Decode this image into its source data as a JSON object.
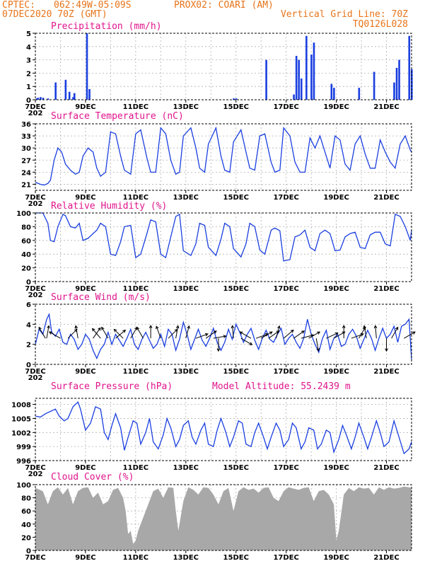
{
  "header": {
    "source": "CPTEC:",
    "coords": "062:49W-05:09S",
    "station": "PROX02: COARI (AM)",
    "datetime": "07DEC2020 70Z (GMT)",
    "grid_note": "Vertical Grid Line: 70Z",
    "run_id": "TQ0126L028"
  },
  "colors": {
    "header": "#e8741a",
    "title": "#e0148c",
    "series": "#1a3fe0",
    "cloud": "#a8a8a8",
    "arrow": "#000000"
  },
  "x_axis": {
    "start": "07DEC",
    "end": "22DEC",
    "tick_labels": [
      "7DEC",
      "9DEC",
      "11DEC",
      "13DEC",
      "15DEC",
      "17DEC",
      "19DEC",
      "21DEC"
    ],
    "partial_year_label": "202"
  },
  "chart_data": [
    {
      "id": "precip",
      "type": "bar",
      "title": "Precipitation (mm/h)",
      "ylim": [
        0,
        5
      ],
      "yticks": [
        "0",
        "1",
        "2",
        "3",
        "4",
        "5"
      ],
      "x": [
        7.05,
        7.1,
        7.2,
        7.3,
        7.5,
        7.8,
        8.2,
        8.35,
        8.5,
        8.55,
        9.05,
        9.15,
        14.9,
        15.0,
        16.2,
        17.3,
        17.4,
        17.5,
        17.6,
        17.8,
        18.0,
        18.1,
        18.8,
        18.9,
        19.9,
        20.5,
        21.3,
        21.4,
        21.5,
        21.9,
        22.0
      ],
      "values": [
        0.1,
        0.15,
        0.2,
        0.15,
        0.1,
        1.3,
        1.5,
        0.6,
        0.2,
        0.5,
        5.0,
        0.8,
        0.1,
        0.1,
        3.0,
        0.4,
        3.3,
        3.0,
        1.6,
        4.8,
        3.4,
        4.3,
        1.2,
        0.9,
        0.9,
        2.1,
        1.3,
        2.4,
        3.0,
        4.8,
        2.3
      ]
    },
    {
      "id": "temp",
      "type": "line",
      "title": "Surface Temperature (nC)",
      "ylim": [
        19.5,
        36
      ],
      "yticks": [
        "21",
        "24",
        "27",
        "30",
        "33",
        "36"
      ],
      "x": [
        7.0,
        7.2,
        7.35,
        7.5,
        7.6,
        7.75,
        7.9,
        8.05,
        8.2,
        8.4,
        8.6,
        8.75,
        8.9,
        9.1,
        9.3,
        9.45,
        9.6,
        9.8,
        10.0,
        10.2,
        10.4,
        10.55,
        10.8,
        11.0,
        11.2,
        11.45,
        11.6,
        11.8,
        12.0,
        12.2,
        12.4,
        12.6,
        12.75,
        12.9,
        13.2,
        13.4,
        13.55,
        13.75,
        13.9,
        14.2,
        14.4,
        14.55,
        14.75,
        14.9,
        15.2,
        15.4,
        15.55,
        15.75,
        15.95,
        16.15,
        16.4,
        16.55,
        16.75,
        16.9,
        17.15,
        17.35,
        17.55,
        17.75,
        17.95,
        18.15,
        18.35,
        18.55,
        18.75,
        18.95,
        19.15,
        19.35,
        19.55,
        19.75,
        19.95,
        20.15,
        20.35,
        20.55,
        20.75,
        20.95,
        21.15,
        21.35,
        21.55,
        21.75,
        21.95,
        22.0
      ],
      "values": [
        21.5,
        21.0,
        20.8,
        21.2,
        22.0,
        27.0,
        30.0,
        29.0,
        26.0,
        24.5,
        23.5,
        24.0,
        28.0,
        30.0,
        29.0,
        25.0,
        23.0,
        24.0,
        34.0,
        33.5,
        28.0,
        24.5,
        23.5,
        33.5,
        34.5,
        27.5,
        24.0,
        24.0,
        35.0,
        33.5,
        27.0,
        23.5,
        24.0,
        33.0,
        35.0,
        30.0,
        25.0,
        24.0,
        31.0,
        35.0,
        28.0,
        24.5,
        24.0,
        31.5,
        34.5,
        29.0,
        25.0,
        24.5,
        33.0,
        33.5,
        26.5,
        24.0,
        24.5,
        35.0,
        33.0,
        26.5,
        24.0,
        24.0,
        32.5,
        30.0,
        33.0,
        29.0,
        25.0,
        33.0,
        32.0,
        26.0,
        24.5,
        31.0,
        33.0,
        28.5,
        25.0,
        25.0,
        32.0,
        29.0,
        26.5,
        25.0,
        31.0,
        33.0,
        29.5,
        29.0
      ]
    },
    {
      "id": "rh",
      "type": "line",
      "title": "Relative Humidity (%)",
      "ylim": [
        0,
        100
      ],
      "yticks": [
        "0",
        "20",
        "40",
        "60",
        "80",
        "100"
      ],
      "x": [
        7.0,
        7.3,
        7.5,
        7.6,
        7.75,
        7.9,
        8.1,
        8.2,
        8.4,
        8.6,
        8.75,
        8.9,
        9.1,
        9.3,
        9.45,
        9.6,
        9.8,
        10.0,
        10.2,
        10.4,
        10.55,
        10.8,
        11.0,
        11.2,
        11.45,
        11.6,
        11.8,
        12.0,
        12.2,
        12.4,
        12.6,
        12.75,
        12.9,
        13.2,
        13.4,
        13.55,
        13.75,
        13.9,
        14.2,
        14.4,
        14.55,
        14.75,
        14.9,
        15.2,
        15.4,
        15.55,
        15.75,
        15.95,
        16.15,
        16.4,
        16.55,
        16.75,
        16.9,
        17.15,
        17.35,
        17.55,
        17.75,
        17.95,
        18.15,
        18.35,
        18.55,
        18.75,
        18.95,
        19.15,
        19.35,
        19.55,
        19.75,
        19.95,
        20.15,
        20.35,
        20.55,
        20.75,
        20.95,
        21.15,
        21.35,
        21.55,
        21.75,
        21.95,
        22.0
      ],
      "values": [
        100,
        100,
        85,
        60,
        58,
        80,
        98,
        96,
        80,
        78,
        85,
        60,
        63,
        70,
        75,
        85,
        80,
        40,
        38,
        58,
        80,
        82,
        35,
        40,
        70,
        90,
        87,
        40,
        35,
        65,
        95,
        98,
        45,
        38,
        55,
        85,
        82,
        50,
        38,
        62,
        85,
        80,
        48,
        36,
        55,
        85,
        80,
        46,
        40,
        75,
        78,
        74,
        30,
        32,
        65,
        68,
        75,
        50,
        45,
        70,
        75,
        70,
        45,
        46,
        65,
        70,
        72,
        50,
        48,
        68,
        72,
        72,
        55,
        52,
        98,
        95,
        80,
        60,
        75
      ]
    },
    {
      "id": "wind",
      "type": "line",
      "title": "Surface Wind (m/s)",
      "ylim": [
        0,
        6
      ],
      "yticks": [
        "0",
        "2",
        "4",
        "6"
      ],
      "x": [
        7.0,
        7.15,
        7.3,
        7.45,
        7.55,
        7.65,
        7.8,
        7.95,
        8.1,
        8.25,
        8.4,
        8.55,
        8.7,
        8.85,
        9.0,
        9.15,
        9.3,
        9.45,
        9.6,
        9.75,
        9.9,
        10.05,
        10.2,
        10.35,
        10.5,
        10.65,
        10.8,
        10.95,
        11.1,
        11.25,
        11.4,
        11.55,
        11.7,
        11.85,
        12.0,
        12.15,
        12.3,
        12.45,
        12.6,
        12.75,
        12.9,
        13.05,
        13.2,
        13.35,
        13.5,
        13.65,
        13.8,
        13.95,
        14.1,
        14.25,
        14.4,
        14.55,
        14.7,
        14.85,
        15.0,
        15.15,
        15.3,
        15.45,
        15.6,
        15.75,
        15.9,
        16.05,
        16.2,
        16.35,
        16.5,
        16.65,
        16.8,
        16.95,
        17.1,
        17.25,
        17.4,
        17.55,
        17.7,
        17.85,
        18.0,
        18.15,
        18.3,
        18.45,
        18.6,
        18.75,
        18.9,
        19.05,
        19.2,
        19.35,
        19.5,
        19.65,
        19.8,
        19.95,
        20.1,
        20.25,
        20.4,
        20.55,
        20.7,
        20.85,
        21.0,
        21.15,
        21.3,
        21.45,
        21.6,
        21.75,
        21.9,
        22.0
      ],
      "values": [
        2.0,
        3.5,
        3.0,
        4.5,
        5.0,
        3.2,
        2.8,
        3.5,
        2.2,
        2.0,
        3.0,
        2.5,
        1.5,
        2.0,
        3.0,
        2.5,
        1.4,
        0.6,
        1.5,
        2.0,
        3.2,
        2.0,
        3.0,
        2.4,
        1.8,
        2.6,
        3.5,
        2.0,
        1.5,
        2.5,
        3.2,
        2.4,
        1.6,
        2.0,
        3.0,
        1.8,
        3.5,
        3.0,
        1.4,
        2.5,
        4.2,
        3.0,
        1.5,
        2.5,
        3.5,
        2.4,
        1.8,
        2.6,
        3.6,
        2.2,
        1.4,
        2.2,
        3.5,
        2.5,
        4.0,
        3.2,
        2.2,
        3.0,
        3.6,
        2.4,
        1.5,
        2.6,
        3.4,
        2.5,
        2.2,
        3.0,
        3.6,
        2.0,
        2.6,
        3.0,
        2.2,
        1.6,
        2.6,
        4.5,
        3.0,
        2.0,
        1.2,
        2.6,
        3.4,
        1.5,
        2.6,
        3.0,
        1.8,
        2.0,
        3.0,
        3.5,
        2.8,
        1.6,
        2.5,
        3.4,
        2.6,
        1.4,
        2.6,
        3.6,
        2.6,
        3.0,
        3.8,
        2.2,
        3.8,
        4.0,
        4.5,
        0.5
      ]
    },
    {
      "id": "pressure",
      "type": "line",
      "title": "Surface Pressure (hPa)",
      "annotation": "Model Altitude: 55.2439 m",
      "ylim": [
        996,
        1009.3
      ],
      "yticks": [
        "996",
        "999",
        "1002",
        "1005",
        "1008"
      ],
      "x": [
        7.0,
        7.2,
        7.4,
        7.6,
        7.8,
        7.95,
        8.15,
        8.3,
        8.5,
        8.7,
        8.8,
        9.0,
        9.2,
        9.4,
        9.6,
        9.75,
        9.9,
        10.05,
        10.2,
        10.4,
        10.55,
        10.7,
        10.9,
        11.05,
        11.2,
        11.4,
        11.55,
        11.7,
        11.9,
        12.1,
        12.25,
        12.4,
        12.6,
        12.75,
        12.9,
        13.1,
        13.25,
        13.4,
        13.6,
        13.75,
        13.9,
        14.1,
        14.25,
        14.4,
        14.6,
        14.75,
        14.9,
        15.1,
        15.25,
        15.4,
        15.6,
        15.75,
        15.9,
        16.1,
        16.25,
        16.4,
        16.6,
        16.75,
        16.9,
        17.1,
        17.25,
        17.4,
        17.6,
        17.75,
        17.9,
        18.1,
        18.25,
        18.4,
        18.6,
        18.75,
        18.9,
        19.1,
        19.25,
        19.4,
        19.6,
        19.75,
        19.9,
        20.1,
        20.25,
        20.4,
        20.6,
        20.75,
        20.9,
        21.1,
        21.3,
        21.5,
        21.7,
        21.9,
        22.0
      ],
      "values": [
        1005.5,
        1005.3,
        1006.0,
        1006.5,
        1007.0,
        1005.5,
        1004.5,
        1005.0,
        1007.5,
        1008.5,
        1007.0,
        1002.5,
        1004.0,
        1007.5,
        1007.0,
        1002.0,
        1000.5,
        1003.5,
        1006.0,
        1003.0,
        998.2,
        1001.0,
        1004.5,
        1004.0,
        999.5,
        1002.0,
        1005.0,
        1000.0,
        998.5,
        1001.5,
        1005.0,
        1003.0,
        999.0,
        1000.5,
        1003.5,
        1004.5,
        1001.0,
        999.5,
        1002.5,
        1004.0,
        999.5,
        999.0,
        1002.5,
        1005.0,
        1002.0,
        999.0,
        1001.0,
        1004.5,
        1004.0,
        999.5,
        999.0,
        1002.0,
        1004.0,
        1001.0,
        998.5,
        1001.0,
        1004.0,
        1002.5,
        999.0,
        1000.5,
        1004.0,
        1003.0,
        998.5,
        1000.0,
        1003.0,
        1002.5,
        998.5,
        999.5,
        1002.5,
        1002.0,
        997.8,
        1000.5,
        1003.5,
        1001.5,
        998.5,
        1001.0,
        1004.0,
        1001.0,
        998.5,
        1001.0,
        1004.5,
        1002.0,
        999.0,
        1000.0,
        1004.5,
        1001.0,
        997.5,
        998.5,
        1000.0
      ]
    },
    {
      "id": "cloud",
      "type": "area",
      "title": "Cloud Cover (%)",
      "ylim": [
        0,
        100
      ],
      "yticks": [
        "0",
        "20",
        "40",
        "60",
        "80",
        "100"
      ],
      "x": [
        7.0,
        7.3,
        7.5,
        7.7,
        7.9,
        8.1,
        8.3,
        8.5,
        8.7,
        8.9,
        9.1,
        9.3,
        9.5,
        9.7,
        9.9,
        10.1,
        10.3,
        10.5,
        10.6,
        10.7,
        10.8,
        10.9,
        11.0,
        11.1,
        11.3,
        11.5,
        11.7,
        11.9,
        12.1,
        12.3,
        12.5,
        12.6,
        12.7,
        12.9,
        13.1,
        13.3,
        13.5,
        13.7,
        13.9,
        14.1,
        14.3,
        14.5,
        14.7,
        14.9,
        15.1,
        15.3,
        15.5,
        15.7,
        15.9,
        16.1,
        16.3,
        16.5,
        16.7,
        16.9,
        17.1,
        17.3,
        17.5,
        17.7,
        17.9,
        18.1,
        18.3,
        18.5,
        18.7,
        18.9,
        19.0,
        19.1,
        19.3,
        19.5,
        19.7,
        19.9,
        20.1,
        20.3,
        20.5,
        20.7,
        20.9,
        21.1,
        21.3,
        21.5,
        21.7,
        21.9,
        22.0
      ],
      "values": [
        95,
        90,
        70,
        90,
        96,
        85,
        95,
        70,
        90,
        95,
        96,
        80,
        88,
        70,
        75,
        92,
        95,
        80,
        60,
        25,
        30,
        10,
        15,
        30,
        50,
        70,
        90,
        94,
        80,
        96,
        95,
        60,
        30,
        75,
        96,
        92,
        85,
        96,
        95,
        85,
        70,
        90,
        95,
        60,
        90,
        96,
        92,
        94,
        88,
        95,
        96,
        80,
        75,
        90,
        96,
        94,
        92,
        95,
        96,
        75,
        90,
        92,
        85,
        70,
        15,
        30,
        85,
        95,
        90,
        96,
        94,
        95,
        85,
        96,
        92,
        96,
        94,
        95,
        97,
        96,
        95
      ]
    }
  ],
  "wind_vectors": [
    {
      "x": 7.4,
      "a": -120
    },
    {
      "x": 7.45,
      "a": -80
    },
    {
      "x": 8.0,
      "a": -150
    },
    {
      "x": 8.3,
      "a": -45
    },
    {
      "x": 8.7,
      "a": -100
    },
    {
      "x": 9.3,
      "a": -55
    },
    {
      "x": 9.6,
      "a": -130
    },
    {
      "x": 9.9,
      "a": -120
    },
    {
      "x": 10.2,
      "a": -40
    },
    {
      "x": 10.5,
      "a": -135
    },
    {
      "x": 10.8,
      "a": -60
    },
    {
      "x": 11.3,
      "a": -120
    },
    {
      "x": 11.6,
      "a": -90
    },
    {
      "x": 12.0,
      "a": -110
    },
    {
      "x": 12.3,
      "a": -45
    },
    {
      "x": 12.6,
      "a": -80
    },
    {
      "x": 13.0,
      "a": -75
    },
    {
      "x": 13.4,
      "a": -20
    },
    {
      "x": 13.8,
      "a": -35
    },
    {
      "x": 14.1,
      "a": -10
    },
    {
      "x": 14.3,
      "a": 90
    },
    {
      "x": 14.9,
      "a": -95
    },
    {
      "x": 15.2,
      "a": 30
    },
    {
      "x": 15.6,
      "a": -150
    },
    {
      "x": 15.8,
      "a": -20
    },
    {
      "x": 16.0,
      "a": -30
    },
    {
      "x": 16.3,
      "a": -35
    },
    {
      "x": 16.6,
      "a": -75
    },
    {
      "x": 16.9,
      "a": -40
    },
    {
      "x": 17.3,
      "a": -35
    },
    {
      "x": 17.6,
      "a": -15
    },
    {
      "x": 17.9,
      "a": -30
    },
    {
      "x": 18.2,
      "a": 80
    },
    {
      "x": 18.6,
      "a": -25
    },
    {
      "x": 18.9,
      "a": -30
    },
    {
      "x": 19.3,
      "a": -90
    },
    {
      "x": 19.6,
      "a": -20
    },
    {
      "x": 19.9,
      "a": -60
    },
    {
      "x": 20.2,
      "a": -100
    },
    {
      "x": 20.6,
      "a": -95
    },
    {
      "x": 21.0,
      "a": 90
    },
    {
      "x": 21.2,
      "a": -60
    },
    {
      "x": 21.7,
      "a": -30
    }
  ]
}
